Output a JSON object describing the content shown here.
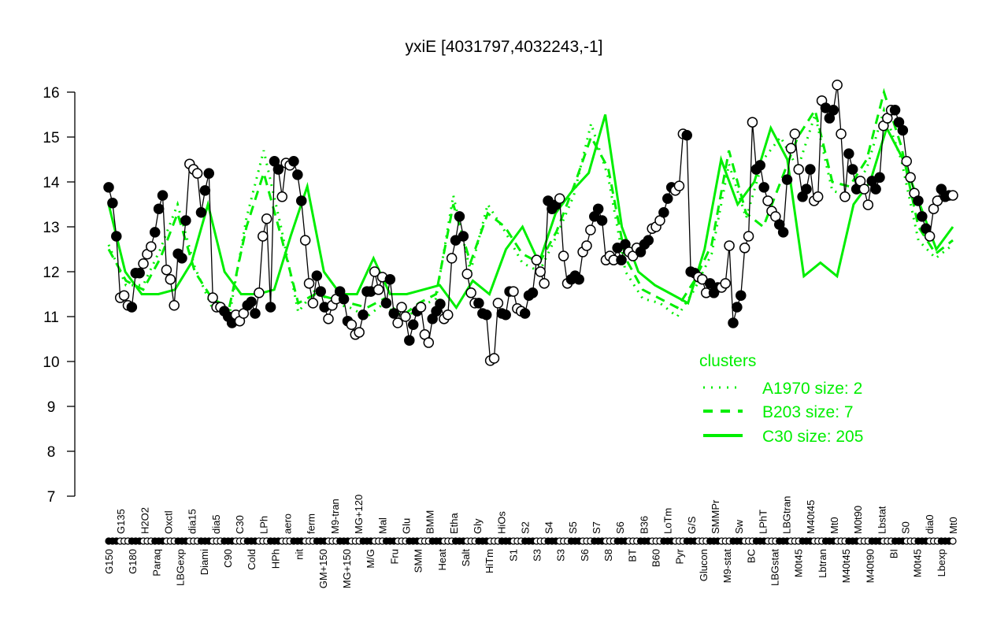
{
  "chart_data": {
    "type": "line",
    "title": "yxiE [4031797,4032243,-1]",
    "xlabel": "",
    "ylabel": "",
    "ylim": [
      7,
      16
    ],
    "yticks": [
      7,
      8,
      9,
      10,
      11,
      12,
      13,
      14,
      15,
      16
    ],
    "grid": false,
    "x_tick_labels": [
      "G150",
      "G135",
      "G180",
      "H2O2",
      "Paraq",
      "Oxctl",
      "LBGexp",
      "dia15",
      "Diami",
      "dia5",
      "C90",
      "C30",
      "Cold",
      "LPh",
      "HPh",
      "aero",
      "nit",
      "ferm",
      "GM+150",
      "M9-tran",
      "MG+150",
      "MG+120",
      "M/G",
      "Mal",
      "Fru",
      "Glu",
      "SMM",
      "BMM",
      "Heat",
      "Etha",
      "Salt",
      "Gly",
      "HiTm",
      "HiOs",
      "S1",
      "S2",
      "S3",
      "S4",
      "S3",
      "S5",
      "S6",
      "S7",
      "S8",
      "S6",
      "BT",
      "B36",
      "B60",
      "LoTm",
      "Pyr",
      "G/S",
      "Glucon",
      "SMMPr",
      "M9-stat",
      "Sw",
      "BC",
      "LPhT",
      "LBGstat",
      "LBGtran",
      "M0t45",
      "M40t45",
      "Lbtran",
      "Mt0",
      "M40t45",
      "M0t90",
      "M40t90",
      "Lbstat",
      "BI",
      "S0",
      "M0t45",
      "dia0",
      "Lbexp",
      "Mt0"
    ],
    "points": {
      "values": [
        13.88,
        13.53,
        12.79,
        11.42,
        11.47,
        11.25,
        11.21,
        11.97,
        11.97,
        12.18,
        12.39,
        12.56,
        12.88,
        13.4,
        13.7,
        12.04,
        11.83,
        11.25,
        12.4,
        12.3,
        13.14,
        14.4,
        14.28,
        14.19,
        13.32,
        13.81,
        14.19,
        11.42,
        11.21,
        11.21,
        11.12,
        11.0,
        10.86,
        11.04,
        10.9,
        11.07,
        11.25,
        11.33,
        11.07,
        11.53,
        12.79,
        13.18,
        11.21,
        14.46,
        14.28,
        13.67,
        14.42,
        14.37,
        14.46,
        14.16,
        13.58,
        12.7,
        11.74,
        11.3,
        11.91,
        11.56,
        11.21,
        10.95,
        11.25,
        11.39,
        11.56,
        11.39,
        10.9,
        10.82,
        10.6,
        10.65,
        11.04,
        11.56,
        11.56,
        12.0,
        11.6,
        11.88,
        11.3,
        11.83,
        11.07,
        10.86,
        11.21,
        11.0,
        10.47,
        10.82,
        11.12,
        11.21,
        10.6,
        10.42,
        10.95,
        11.12,
        11.28,
        10.95,
        11.04,
        12.3,
        12.7,
        13.23,
        12.79,
        11.95,
        11.53,
        11.3,
        11.3,
        11.07,
        11.04,
        10.02,
        10.07,
        11.3,
        11.07,
        11.04,
        11.56,
        11.56,
        11.18,
        11.12,
        11.07,
        11.47,
        11.53,
        12.26,
        12.0,
        11.74,
        13.58,
        13.4,
        13.49,
        13.63,
        12.35,
        11.74,
        11.83,
        11.91,
        11.83,
        12.44,
        12.58,
        12.93,
        13.23,
        13.4,
        13.14,
        12.26,
        12.35,
        12.26,
        12.53,
        12.26,
        12.61,
        12.44,
        12.35,
        12.53,
        12.44,
        12.61,
        12.7,
        12.96,
        13.0,
        13.14,
        13.32,
        13.63,
        13.88,
        13.81,
        13.91,
        15.07,
        15.04,
        12.0,
        11.97,
        11.88,
        11.83,
        11.53,
        11.74,
        11.53,
        11.65,
        11.65,
        11.74,
        12.58,
        10.86,
        11.21,
        11.47,
        12.53,
        12.79,
        15.33,
        14.28,
        14.37,
        13.88,
        13.58,
        13.35,
        13.23,
        13.05,
        12.88,
        14.05,
        14.75,
        15.07,
        14.28,
        13.67,
        13.84,
        14.28,
        13.58,
        13.67,
        15.81,
        15.65,
        15.42,
        15.6,
        16.16,
        15.07,
        13.67,
        14.63,
        14.28,
        13.84,
        14.02,
        13.84,
        13.49,
        14.02,
        13.84,
        14.1,
        15.25,
        15.42,
        15.6,
        15.6,
        15.33,
        15.15,
        14.46,
        14.1,
        13.75,
        13.58,
        13.23,
        12.96,
        12.79,
        13.4,
        13.58,
        13.84,
        13.67,
        13.7,
        13.7
      ],
      "filled_pattern": "alternating groups"
    },
    "series": [
      {
        "name": "C30 size: 205",
        "style": "solid",
        "values": [
          13.5,
          12.0,
          11.5,
          11.5,
          11.6,
          12.2,
          13.5,
          12.0,
          11.5,
          11.5,
          11.6,
          12.8,
          13.9,
          12.0,
          11.5,
          11.5,
          12.3,
          11.5,
          11.5,
          11.6,
          11.7,
          11.2,
          11.8,
          11.5,
          12.5,
          13.0,
          12.2,
          13.3,
          13.8,
          14.2,
          15.5,
          13.0,
          12.0,
          11.7,
          11.5,
          11.3,
          12.5,
          14.5,
          13.5,
          14.0,
          15.2,
          14.5,
          11.9,
          12.2,
          11.9,
          13.5,
          14.0,
          15.2,
          14.5,
          13.5,
          12.5,
          13.0
        ]
      },
      {
        "name": "B203 size: 7",
        "style": "dashed",
        "values": [
          12.5,
          11.8,
          11.6,
          12.3,
          13.3,
          12.0,
          11.4,
          11.2,
          13.0,
          14.2,
          12.8,
          11.3,
          11.5,
          11.4,
          11.3,
          11.2,
          11.4,
          11.0,
          11.3,
          11.5,
          13.5,
          12.2,
          13.3,
          13.0,
          12.4,
          12.2,
          12.9,
          13.9,
          15.0,
          14.3,
          12.3,
          11.6,
          11.4,
          11.2,
          11.8,
          12.6,
          14.7,
          13.3,
          13.0,
          14.0,
          15.0,
          15.6,
          14.0,
          13.9,
          14.5,
          16.0,
          14.8,
          13.0,
          12.4,
          12.7
        ]
      },
      {
        "name": "A1970 size: 2",
        "style": "dotted",
        "values": [
          12.6,
          11.7,
          11.7,
          12.5,
          13.5,
          12.1,
          11.2,
          11.0,
          13.2,
          14.7,
          13.0,
          11.1,
          11.6,
          11.3,
          11.2,
          11.0,
          11.3,
          10.9,
          11.2,
          11.4,
          13.7,
          12.0,
          13.5,
          12.9,
          12.2,
          12.0,
          12.8,
          13.7,
          15.3,
          14.1,
          12.0,
          11.4,
          11.3,
          11.0,
          11.6,
          12.4,
          14.4,
          13.2,
          14.5,
          15.0,
          14.3,
          15.5,
          13.8,
          13.7,
          14.3,
          15.6,
          14.5,
          12.7,
          12.3,
          12.6
        ]
      }
    ],
    "legend": {
      "title": "clusters",
      "position": "bottom-right",
      "entries": [
        "A1970 size: 2",
        "B203 size: 7",
        "C30 size: 205"
      ]
    },
    "colors": {
      "cluster": "#00ee00",
      "points": "#000000"
    }
  }
}
